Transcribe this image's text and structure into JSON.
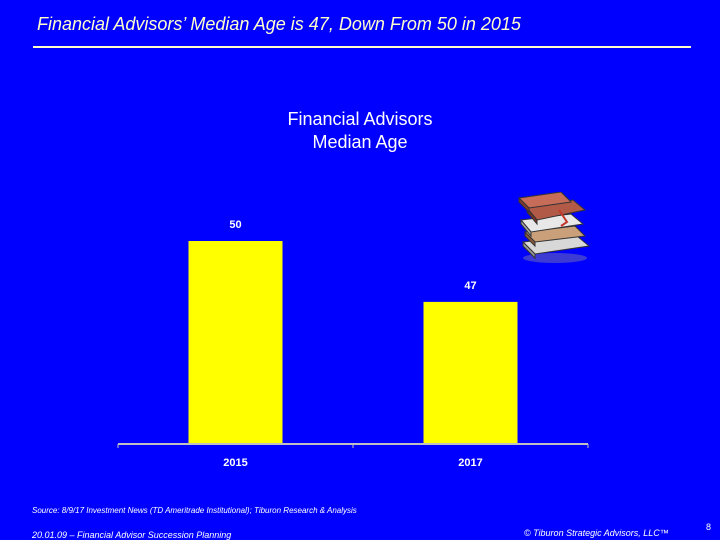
{
  "slide": {
    "title": "Financial Advisors’ Median Age is 47, Down From 50 in 2015",
    "source": "Source: 8/9/17 Investment News (TD Ameritrade Institutional); Tiburon Research & Analysis",
    "footer_left": "20.01.09 – Financial Advisor Succession Planning",
    "footer_right": "© Tiburon Strategic Advisors, LLC™",
    "page_number": "8",
    "books_icon": "stack-of-books-clipart"
  },
  "chart_data": {
    "type": "bar",
    "title_lines": [
      "Financial Advisors",
      "Median Age"
    ],
    "categories": [
      "2015",
      "2017"
    ],
    "values": [
      50,
      47
    ],
    "data_labels": [
      "50",
      "47"
    ],
    "bar_color": "#ffff00",
    "ylim": [
      40,
      51
    ]
  }
}
